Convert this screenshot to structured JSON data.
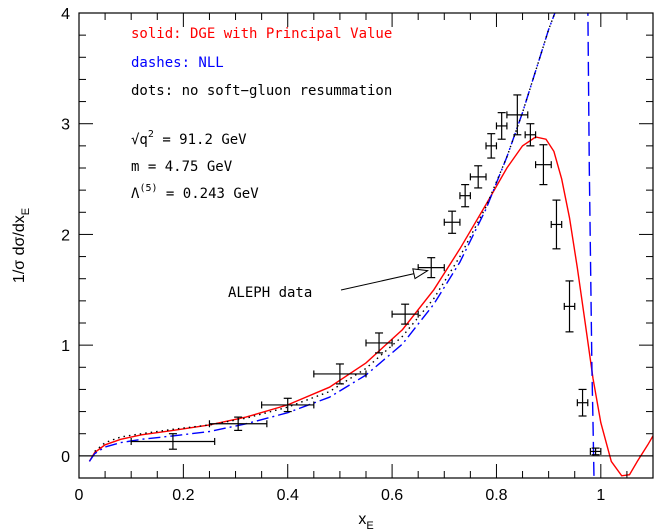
{
  "chart_data": {
    "type": "line",
    "xlabel": "x_E",
    "ylabel": "1/σ dσ/dx_E",
    "xlim": [
      0,
      1.1
    ],
    "ylim": [
      -0.2,
      4
    ],
    "x_ticks": [
      0,
      0.2,
      0.4,
      0.6,
      0.8,
      1
    ],
    "x_tick_labels": [
      "0",
      "0.2",
      "0.4",
      "0.6",
      "0.8",
      "1"
    ],
    "y_ticks": [
      0,
      1,
      2,
      3,
      4
    ],
    "y_tick_labels": [
      "0",
      "1",
      "2",
      "3",
      "4"
    ],
    "grid": false,
    "legend": [
      {
        "text": "solid: DGE with Principal Value",
        "color": "#ff0000"
      },
      {
        "text": "dashes: NLL",
        "color": "#0000ff"
      },
      {
        "text": "dots: no soft−gluon resummation",
        "color": "#000000"
      }
    ],
    "params": [
      {
        "prefix": "√q",
        "sup": "2",
        "rest": " = 91.2 GeV"
      },
      {
        "prefix": "m = 4.75 GeV",
        "sup": "",
        "rest": ""
      },
      {
        "prefix": "Λ",
        "sup": "(5)",
        "rest": " = 0.243 GeV"
      }
    ],
    "annotation": "ALEPH data",
    "series": [
      {
        "style": "solid",
        "color": "#ff0000",
        "x": [
          0.02,
          0.03,
          0.05,
          0.08,
          0.12,
          0.18,
          0.25,
          0.32,
          0.4,
          0.48,
          0.55,
          0.62,
          0.68,
          0.73,
          0.78,
          0.82,
          0.85,
          0.875,
          0.895,
          0.91,
          0.925,
          0.94,
          0.955,
          0.97,
          0.985,
          1.0,
          1.02,
          1.04,
          1.055,
          1.07,
          1.09,
          1.1
        ],
        "y": [
          -0.05,
          0.03,
          0.1,
          0.15,
          0.19,
          0.23,
          0.28,
          0.35,
          0.46,
          0.62,
          0.84,
          1.14,
          1.5,
          1.87,
          2.27,
          2.6,
          2.8,
          2.88,
          2.86,
          2.75,
          2.5,
          2.15,
          1.7,
          1.2,
          0.7,
          0.3,
          -0.05,
          -0.18,
          -0.17,
          -0.05,
          0.1,
          0.18
        ]
      },
      {
        "style": "dashdot",
        "color": "#0000ff",
        "x": [
          0.02,
          0.03,
          0.05,
          0.08,
          0.12,
          0.18,
          0.25,
          0.32,
          0.4,
          0.48,
          0.55,
          0.62,
          0.68,
          0.73,
          0.78,
          0.82,
          0.85,
          0.88,
          0.9,
          0.92,
          0.94
        ],
        "y": [
          -0.05,
          0.02,
          0.08,
          0.12,
          0.15,
          0.18,
          0.22,
          0.29,
          0.39,
          0.53,
          0.73,
          1.01,
          1.37,
          1.75,
          2.23,
          2.7,
          3.1,
          3.55,
          3.85,
          4.1,
          4.3
        ]
      },
      {
        "style": "dashed",
        "color": "#0000ff",
        "x": [
          0.975,
          0.978,
          0.981,
          0.983,
          0.985,
          0.986,
          0.987
        ],
        "y": [
          4.1,
          2.6,
          1.5,
          0.8,
          0.3,
          0.05,
          -0.2
        ]
      },
      {
        "style": "dotted",
        "color": "#000000",
        "x": [
          0.03,
          0.05,
          0.08,
          0.12,
          0.18,
          0.25,
          0.32,
          0.4,
          0.48,
          0.55,
          0.62,
          0.68,
          0.73,
          0.78,
          0.82,
          0.85,
          0.88,
          0.9,
          0.92,
          0.94
        ],
        "y": [
          0.04,
          0.12,
          0.17,
          0.2,
          0.24,
          0.28,
          0.34,
          0.44,
          0.58,
          0.79,
          1.08,
          1.42,
          1.8,
          2.25,
          2.7,
          3.1,
          3.55,
          3.85,
          4.1,
          4.3
        ]
      }
    ],
    "data_points": [
      {
        "x": 0.18,
        "xlo": 0.1,
        "xhi": 0.26,
        "y": 0.13,
        "yerr": 0.07
      },
      {
        "x": 0.305,
        "xlo": 0.25,
        "xhi": 0.36,
        "y": 0.29,
        "yerr": 0.06
      },
      {
        "x": 0.4,
        "xlo": 0.35,
        "xhi": 0.45,
        "y": 0.46,
        "yerr": 0.06
      },
      {
        "x": 0.5,
        "xlo": 0.45,
        "xhi": 0.55,
        "y": 0.74,
        "yerr": 0.09
      },
      {
        "x": 0.575,
        "xlo": 0.55,
        "xhi": 0.6,
        "y": 1.02,
        "yerr": 0.09
      },
      {
        "x": 0.625,
        "xlo": 0.6,
        "xhi": 0.65,
        "y": 1.28,
        "yerr": 0.09
      },
      {
        "x": 0.675,
        "xlo": 0.65,
        "xhi": 0.7,
        "y": 1.7,
        "yerr": 0.09
      },
      {
        "x": 0.715,
        "xlo": 0.7,
        "xhi": 0.73,
        "y": 2.11,
        "yerr": 0.1
      },
      {
        "x": 0.74,
        "xlo": 0.73,
        "xhi": 0.75,
        "y": 2.35,
        "yerr": 0.1
      },
      {
        "x": 0.765,
        "xlo": 0.75,
        "xhi": 0.78,
        "y": 2.52,
        "yerr": 0.1
      },
      {
        "x": 0.79,
        "xlo": 0.78,
        "xhi": 0.8,
        "y": 2.8,
        "yerr": 0.11
      },
      {
        "x": 0.81,
        "xlo": 0.8,
        "xhi": 0.82,
        "y": 2.98,
        "yerr": 0.12
      },
      {
        "x": 0.84,
        "xlo": 0.82,
        "xhi": 0.86,
        "y": 3.08,
        "yerr": 0.18
      },
      {
        "x": 0.865,
        "xlo": 0.855,
        "xhi": 0.875,
        "y": 2.9,
        "yerr": 0.1
      },
      {
        "x": 0.89,
        "xlo": 0.875,
        "xhi": 0.905,
        "y": 2.63,
        "yerr": 0.18
      },
      {
        "x": 0.915,
        "xlo": 0.905,
        "xhi": 0.925,
        "y": 2.09,
        "yerr": 0.22
      },
      {
        "x": 0.94,
        "xlo": 0.93,
        "xhi": 0.95,
        "y": 1.35,
        "yerr": 0.23
      },
      {
        "x": 0.965,
        "xlo": 0.955,
        "xhi": 0.975,
        "y": 0.48,
        "yerr": 0.12
      },
      {
        "x": 0.99,
        "xlo": 0.98,
        "xhi": 1.0,
        "y": 0.04,
        "yerr": 0.03
      }
    ]
  }
}
